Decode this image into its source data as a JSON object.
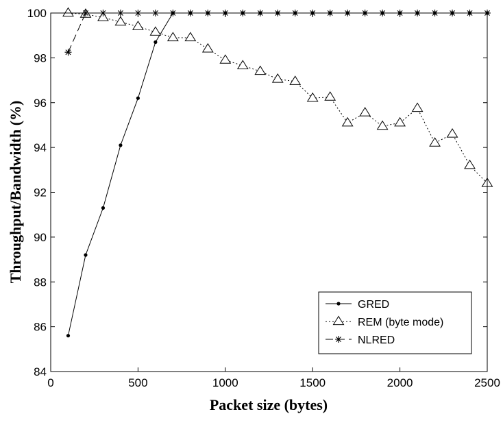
{
  "chart_data": {
    "type": "line",
    "xlabel": "Packet size (bytes)",
    "ylabel": "Throughput/Bandwidth (%)",
    "xlim": [
      0,
      2500
    ],
    "ylim": [
      84,
      100
    ],
    "xticks": [
      0,
      500,
      1000,
      1500,
      2000,
      2500
    ],
    "yticks": [
      84,
      86,
      88,
      90,
      92,
      94,
      96,
      98,
      100
    ],
    "grid": false,
    "legend_position": "bottom-right",
    "series": [
      {
        "name": "GRED",
        "marker": "dot",
        "line_style": "solid",
        "x": [
          100,
          200,
          300,
          400,
          500,
          600,
          700,
          800,
          900,
          1000,
          1100,
          1200,
          1300,
          1400,
          1500,
          1600,
          1700,
          1800,
          1900,
          2000,
          2100,
          2200,
          2300,
          2400,
          2500
        ],
        "y": [
          85.6,
          89.2,
          91.3,
          94.1,
          96.2,
          98.7,
          100,
          100,
          100,
          100,
          100,
          100,
          100,
          100,
          100,
          100,
          100,
          100,
          100,
          100,
          100,
          100,
          100,
          100,
          100
        ]
      },
      {
        "name": "REM (byte mode)",
        "marker": "triangle",
        "line_style": "dotted",
        "x": [
          100,
          200,
          300,
          400,
          500,
          600,
          700,
          800,
          900,
          1000,
          1100,
          1200,
          1300,
          1400,
          1500,
          1600,
          1700,
          1800,
          1900,
          2000,
          2100,
          2200,
          2300,
          2400,
          2500
        ],
        "y": [
          100,
          99.95,
          99.8,
          99.6,
          99.4,
          99.15,
          98.9,
          98.9,
          98.4,
          97.9,
          97.65,
          97.4,
          97.05,
          96.95,
          96.2,
          96.25,
          95.1,
          95.55,
          94.95,
          95.1,
          95.75,
          94.2,
          94.6,
          93.2,
          92.4
        ]
      },
      {
        "name": "NLRED",
        "marker": "star",
        "line_style": "dashed",
        "x": [
          100,
          200,
          300,
          400,
          500,
          600,
          700,
          800,
          900,
          1000,
          1100,
          1200,
          1300,
          1400,
          1500,
          1600,
          1700,
          1800,
          1900,
          2000,
          2100,
          2200,
          2300,
          2400,
          2500
        ],
        "y": [
          98.25,
          100,
          100,
          100,
          100,
          100,
          100,
          100,
          100,
          100,
          100,
          100,
          100,
          100,
          100,
          100,
          100,
          100,
          100,
          100,
          100,
          100,
          100,
          100,
          100
        ]
      }
    ]
  }
}
